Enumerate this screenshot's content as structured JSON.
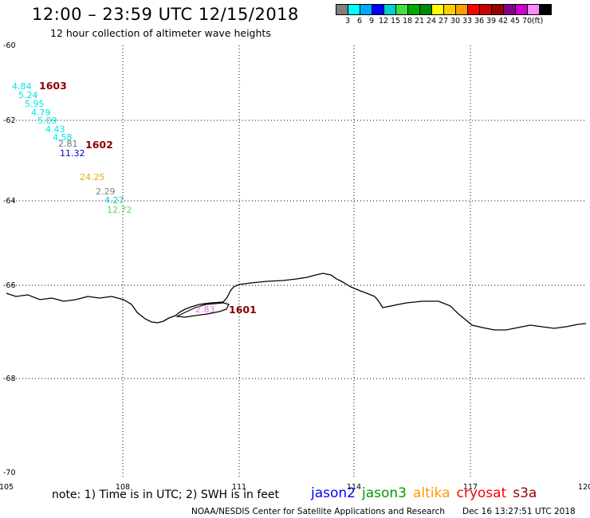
{
  "header": {
    "title": "12:00 – 23:59 UTC 12/15/2018",
    "subtitle": "12 hour collection of altimeter wave heights"
  },
  "legend": {
    "unit": "(ft)",
    "colors": [
      "#808080",
      "#00ffff",
      "#00aaff",
      "#0000ff",
      "#00d0d0",
      "#44dd44",
      "#00aa00",
      "#008800",
      "#ffff00",
      "#ffd000",
      "#ffa000",
      "#ff0000",
      "#cc0000",
      "#990000",
      "#880088",
      "#cc00cc",
      "#ff88ff",
      "#000000"
    ],
    "labels": [
      "3",
      "6",
      "9",
      "12",
      "15",
      "18",
      "21",
      "24",
      "27",
      "30",
      "33",
      "36",
      "39",
      "42",
      "45",
      "70"
    ]
  },
  "map": {
    "lon_ticks": [
      "105",
      "108",
      "111",
      "114",
      "117",
      "120"
    ],
    "lat_ticks": [
      "-60",
      "-62",
      "-64",
      "-66",
      "-68",
      "-70"
    ],
    "observations": [
      {
        "text": "4.84",
        "color": "#00e5e5"
      },
      {
        "text": "5.24",
        "color": "#00e5e5"
      },
      {
        "text": "5.95",
        "color": "#00e5e5"
      },
      {
        "text": "4.79",
        "color": "#00e5e5"
      },
      {
        "text": "5.09",
        "color": "#00e5e5"
      },
      {
        "text": "4.43",
        "color": "#00e5e5"
      },
      {
        "text": "4.58",
        "color": "#00e5e5"
      },
      {
        "text": "2.81",
        "color": "#707070"
      },
      {
        "text": "11.32",
        "color": "#0000cc"
      },
      {
        "text": "24.25",
        "color": "#e0b000"
      },
      {
        "text": "2.29",
        "color": "#808080"
      },
      {
        "text": "4.27",
        "color": "#00cccc"
      },
      {
        "text": "12.72",
        "color": "#55dd55"
      },
      {
        "text": "2.83",
        "color": "#dd77dd"
      }
    ],
    "pass_labels": [
      "1603",
      "1602",
      "1601"
    ]
  },
  "footer": {
    "note": "note: 1) Time is in UTC; 2) SWH is in feet",
    "satellites": [
      {
        "name": "jason2",
        "color": "#0000ff"
      },
      {
        "name": "jason3",
        "color": "#009900"
      },
      {
        "name": "altika",
        "color": "#ff9900"
      },
      {
        "name": "cryosat",
        "color": "#ff0000"
      },
      {
        "name": "s3a",
        "color": "#990000"
      }
    ],
    "credit": "NOAA/NESDIS Center for Satellite Applications and Research",
    "timestamp": "Dec 16 13:27:51 UTC 2018"
  }
}
